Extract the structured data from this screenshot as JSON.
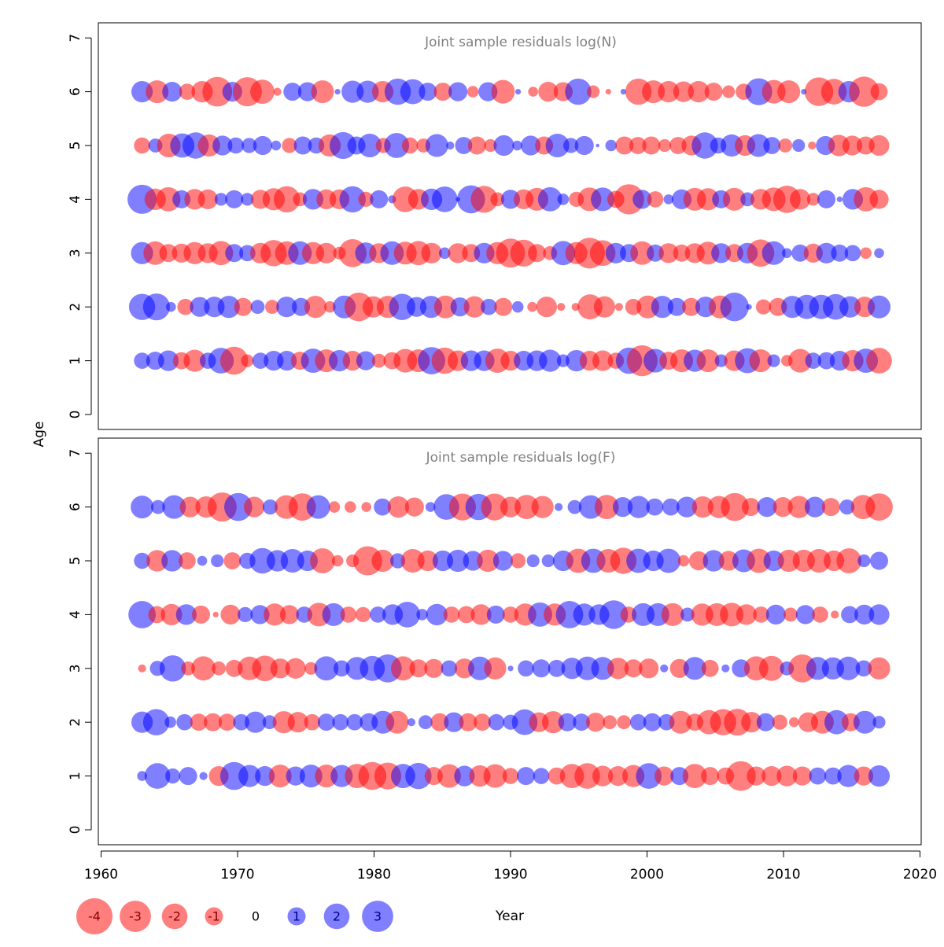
{
  "chart_data": {
    "type": "scatter",
    "subtype": "bubble residual plot",
    "xlabel": "Year",
    "ylabel": "Age",
    "xlim": [
      1960,
      2020
    ],
    "ylim": [
      0,
      7
    ],
    "x_ticks": [
      "1960",
      "1970",
      "1980",
      "1990",
      "2000",
      "2010",
      "2020"
    ],
    "y_ticks": [
      "0",
      "1",
      "2",
      "3",
      "4",
      "5",
      "6",
      "7"
    ],
    "colors": {
      "negative": "#ff0000",
      "positive": "#0000ff",
      "opacity": 0.5
    },
    "years_start": 1963,
    "panels": [
      {
        "title": "Joint sample residuals log(N)",
        "residuals_by_age": {
          "6": [
            1.4,
            -1.6,
            1.2,
            -0.8,
            -1.4,
            -2.7,
            1.2,
            -2.6,
            -1.8,
            -0.2,
            1.0,
            1.1,
            -1.6,
            0.1,
            1.5,
            1.5,
            -1.4,
            2.1,
            1.9,
            1.0,
            -1.0,
            1.1,
            -0.4,
            1.1,
            -1.7,
            0.1,
            -0.3,
            -1.2,
            -1.1,
            2.1,
            -0.5,
            -0.1,
            0.1,
            -2.1,
            -1.6,
            -1.4,
            -1.3,
            -1.4,
            -1.0,
            -0.5,
            -0.8,
            2.2,
            -1.7,
            -1.6,
            0.1,
            -2.5,
            -2.0,
            1.4,
            -2.8,
            -0.9
          ],
          "5": [
            -0.8,
            0.6,
            -1.7,
            1.8,
            2.1,
            -1.5,
            1.2,
            0.8,
            0.7,
            1.1,
            0.3,
            -0.7,
            1.0,
            0.8,
            -1.5,
            2.2,
            1.0,
            1.7,
            -0.7,
            1.9,
            -0.8,
            -0.6,
            1.6,
            0.2,
            0.9,
            -1.0,
            -0.5,
            1.3,
            0.3,
            1.2,
            -1.0,
            1.7,
            0.7,
            1.1,
            0.04,
            0.4,
            -1.0,
            -0.9,
            -1.0,
            -0.5,
            -0.9,
            -1.2,
            2.1,
            0.8,
            1.5,
            -1.3,
            1.6,
            0.9,
            -0.6,
            0.5,
            -0.2,
            1.1,
            -1.4,
            -1.2,
            -1.0,
            -1.3
          ],
          "4": [
            2.6,
            -1.4,
            -1.8,
            1.0,
            -1.3,
            -1.2,
            0.5,
            1.0,
            0.5,
            -1.1,
            -1.5,
            -2.1,
            -0.6,
            1.3,
            -1.2,
            -1.2,
            2.1,
            -0.7,
            1.0,
            0.2,
            -2.0,
            -1.3,
            1.4,
            2.0,
            0.06,
            2.4,
            -2.2,
            -0.6,
            1.1,
            -1.2,
            -1.6,
            1.8,
            0.4,
            -0.7,
            -1.7,
            1.7,
            -0.9,
            -2.8,
            1.1,
            -0.8,
            0.3,
            1.2,
            -1.6,
            -1.5,
            1.0,
            -1.6,
            0.6,
            -1.3,
            -1.7,
            -2.3,
            -1.3,
            -0.5,
            1.0,
            0.1,
            1.3,
            -1.8,
            -1.1
          ],
          "3": [
            1.5,
            -1.7,
            -1.0,
            -1.1,
            -1.5,
            -1.2,
            -1.8,
            1.0,
            0.8,
            -1.3,
            -2.1,
            -1.7,
            1.7,
            -1.5,
            -1.3,
            -0.5,
            -2.4,
            1.4,
            -1.2,
            1.7,
            -1.6,
            -1.8,
            -1.3,
            0.4,
            -1.2,
            -1.0,
            1.3,
            -1.5,
            -2.6,
            -2.2,
            -1.0,
            -0.6,
            1.8,
            -1.5,
            -2.9,
            -2.0,
            1.3,
            1.0,
            -1.7,
            0.9,
            -1.2,
            -0.9,
            -1.2,
            -1.6,
            1.2,
            -1.0,
            1.3,
            -2.3,
            1.7,
            0.3,
            0.9,
            -1.1,
            1.3,
            0.9,
            0.8,
            -0.4,
            0.3
          ],
          "2": [
            2.1,
            2.2,
            0.3,
            -0.8,
            1.2,
            1.3,
            1.5,
            -1.0,
            0.6,
            -0.6,
            1.3,
            1.0,
            -1.5,
            -0.4,
            1.6,
            -2.5,
            -1.4,
            -1.5,
            2.1,
            1.2,
            1.5,
            -1.6,
            1.1,
            -1.4,
            0.8,
            -1.0,
            0.4,
            -0.3,
            -1.3,
            -0.2,
            -0.2,
            -1.9,
            -1.4,
            -0.2,
            -0.8,
            -1.6,
            1.5,
            1.0,
            -1.0,
            1.3,
            -1.6,
            2.5,
            0.1,
            -0.7,
            -1.0,
            1.5,
            1.8,
            1.8,
            2.0,
            1.4,
            -1.3,
            1.6
          ],
          "1": [
            0.8,
            1.0,
            1.3,
            -0.9,
            -1.5,
            0.8,
            2.0,
            -2.4,
            -0.5,
            0.8,
            1.2,
            1.2,
            -1.0,
            1.8,
            -1.6,
            1.4,
            -1.2,
            1.1,
            -0.6,
            -0.9,
            -1.7,
            -1.6,
            2.3,
            -2.1,
            -1.3,
            1.3,
            1.3,
            -1.8,
            -1.2,
            1.2,
            1.3,
            1.5,
            0.5,
            1.4,
            -1.2,
            -1.3,
            -0.8,
            2.1,
            -2.9,
            1.7,
            -1.0,
            -1.6,
            1.5,
            -1.6,
            0.5,
            -1.3,
            1.9,
            -1.6,
            0.5,
            -0.4,
            -1.7,
            0.8,
            0.9,
            1.2,
            -1.4,
            1.8,
            -2.0
          ]
        }
      },
      {
        "title": "Joint sample residuals log(F)",
        "residuals_by_age": {
          "6": [
            1.6,
            0.6,
            1.7,
            -1.3,
            -1.4,
            -2.6,
            2.4,
            -1.3,
            0.7,
            -1.7,
            -2.3,
            1.7,
            -0.4,
            -0.4,
            -0.3,
            0.9,
            -1.4,
            -1.1,
            0.3,
            2.0,
            -2.2,
            2.1,
            -2.2,
            -1.3,
            -1.8,
            -1.5,
            0.2,
            0.6,
            1.7,
            -1.8,
            1.2,
            1.5,
            0.9,
            0.9,
            1.3,
            -1.4,
            -1.5,
            -2.4,
            -1.0,
            1.2,
            -1.2,
            -1.5,
            1.3,
            -1.0,
            0.7,
            -1.8,
            -2.3
          ],
          "5": [
            0.8,
            -1.4,
            1.4,
            -0.9,
            0.3,
            0.5,
            -0.9,
            0.8,
            2.0,
            1.4,
            1.7,
            1.3,
            -1.9,
            -0.4,
            -0.5,
            -2.6,
            -1.5,
            0.7,
            -1.7,
            -1.3,
            1.3,
            1.5,
            1.2,
            -1.5,
            1.2,
            -0.7,
            0.5,
            0.5,
            1.3,
            -1.8,
            1.8,
            -1.7,
            -2.1,
            1.8,
            1.3,
            1.8,
            -0.4,
            -1.1,
            1.4,
            -1.2,
            1.6,
            -1.8,
            1.3,
            -1.5,
            -1.5,
            -1.7,
            -1.3,
            -1.9,
            0.5,
            1.0
          ],
          "4": [
            2.3,
            -0.9,
            -1.4,
            1.3,
            -1.0,
            -0.1,
            -1.2,
            0.7,
            1.1,
            -1.5,
            -1.1,
            0.8,
            -1.7,
            1.6,
            -0.8,
            -0.7,
            0.8,
            1.3,
            2.0,
            0.4,
            1.4,
            -0.8,
            -0.9,
            -1.3,
            1.0,
            -0.8,
            -1.5,
            1.8,
            -1.5,
            2.3,
            1.5,
            1.3,
            2.5,
            -0.8,
            1.6,
            1.6,
            -1.6,
            0.6,
            -1.5,
            -1.6,
            -1.7,
            -1.3,
            -0.8,
            1.2,
            -0.6,
            1.1,
            -0.8,
            -0.2,
            0.9,
            1.2,
            1.3
          ],
          "3": [
            -0.2,
            0.7,
            2.1,
            -0.6,
            -1.8,
            -0.6,
            -0.9,
            -1.7,
            -2.0,
            -1.2,
            -1.3,
            -0.5,
            1.8,
            0.8,
            1.6,
            1.9,
            2.4,
            -1.8,
            -1.0,
            -1.1,
            0.8,
            -1.2,
            1.7,
            -1.5,
            0.1,
            0.8,
            1.0,
            0.9,
            1.4,
            1.7,
            1.6,
            -1.4,
            -1.0,
            -1.2,
            0.2,
            -1.1,
            1.6,
            -0.9,
            0.2,
            1.0,
            -1.8,
            -1.9,
            0.6,
            -2.4,
            1.6,
            1.5,
            1.7,
            0.8,
            -1.5
          ],
          "2": [
            1.4,
            2.1,
            0.4,
            0.8,
            -0.9,
            -1.0,
            -0.9,
            0.8,
            1.4,
            0.6,
            -1.5,
            -1.3,
            -0.8,
            0.9,
            0.8,
            0.8,
            1.0,
            1.6,
            -1.6,
            0.2,
            0.6,
            -1.0,
            1.2,
            -1.0,
            -0.9,
            0.8,
            0.7,
            2.0,
            -1.2,
            -1.5,
            1.0,
            0.9,
            -1.1,
            -0.6,
            -0.6,
            0.8,
            1.0,
            0.8,
            -1.6,
            -0.9,
            -1.8,
            -2.1,
            -2.2,
            -1.3,
            1.0,
            -0.7,
            -0.3,
            -1.2,
            -1.6,
            1.8,
            -1.0,
            1.6,
            0.5
          ],
          "1": [
            0.3,
            2.0,
            0.7,
            1.0,
            0.2,
            -1.2,
            2.4,
            1.5,
            1.2,
            -1.6,
            1.1,
            1.6,
            -1.6,
            1.5,
            -1.8,
            -2.4,
            -2.2,
            1.8,
            2.1,
            -1.0,
            -1.7,
            1.3,
            -1.4,
            -1.7,
            -0.8,
            1.0,
            0.8,
            -0.9,
            -1.8,
            -2.0,
            -1.3,
            -1.2,
            -1.5,
            2.0,
            -1.1,
            1.0,
            -1.8,
            -1.0,
            -0.9,
            -2.7,
            -1.1,
            -1.2,
            -1.3,
            -1.1,
            0.9,
            0.9,
            1.5,
            -1.1,
            1.4
          ]
        }
      }
    ],
    "legend": {
      "values": [
        -4,
        -3,
        -2,
        -1,
        0,
        1,
        2,
        3
      ],
      "labels": [
        "-4",
        "-3",
        "-2",
        "-1",
        "0",
        "1",
        "2",
        "3"
      ]
    }
  }
}
